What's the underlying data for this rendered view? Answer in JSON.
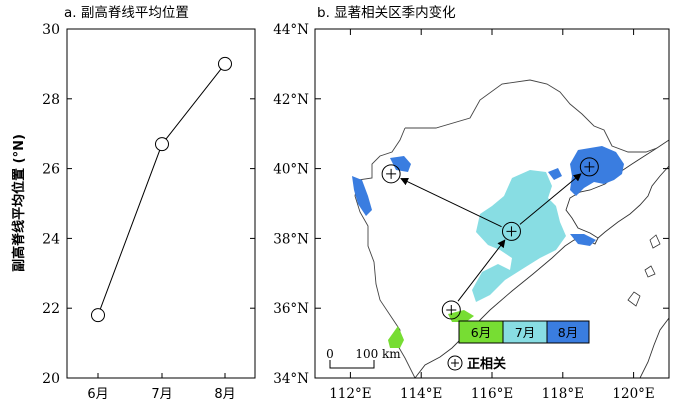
{
  "chart_data": [
    {
      "type": "line",
      "title": "a. 副高脊线平均位置",
      "ylabel": "副高脊线平均位置 (°N)",
      "xlabel": "",
      "categories": [
        "6月",
        "7月",
        "8月"
      ],
      "series": [
        {
          "values": [
            21.8,
            26.7,
            29.0
          ]
        }
      ],
      "ylim": [
        20,
        30
      ],
      "yticks": [
        "20",
        "22",
        "24",
        "26",
        "28",
        "30"
      ],
      "marker": "open-circle",
      "grid": false
    },
    {
      "type": "other",
      "title": "b. 显著相关区季内变化",
      "x_ticks": [
        {
          "value": 112,
          "label": "112°E"
        },
        {
          "value": 114,
          "label": "114°E"
        },
        {
          "value": 116,
          "label": "116°E"
        },
        {
          "value": 118,
          "label": "118°E"
        },
        {
          "value": 120,
          "label": "120°E"
        }
      ],
      "y_ticks": [
        {
          "value": 34,
          "label": "34°N"
        },
        {
          "value": 36,
          "label": "36°N"
        },
        {
          "value": 38,
          "label": "38°N"
        },
        {
          "value": 40,
          "label": "40°N"
        },
        {
          "value": 42,
          "label": "42°N"
        },
        {
          "value": 44,
          "label": "44°N"
        }
      ],
      "xlim": [
        111,
        121
      ],
      "ylim": [
        34,
        44
      ],
      "centers": [
        {
          "month": "6月",
          "lon": 114.85,
          "lat": 35.95
        },
        {
          "month": "7月",
          "lon": 116.55,
          "lat": 38.2
        },
        {
          "month": "8月",
          "lon": 118.75,
          "lat": 40.05
        },
        {
          "month": "",
          "lon": 113.15,
          "lat": 39.85
        }
      ],
      "legend": {
        "items": [
          {
            "label": "6月",
            "color": "#77dd33"
          },
          {
            "label": "7月",
            "color": "#88dde3"
          },
          {
            "label": "8月",
            "color": "#3a7de0"
          }
        ],
        "positive_label": "正相关"
      },
      "scale_bar": {
        "zero": "0",
        "label": "100 km"
      }
    }
  ]
}
